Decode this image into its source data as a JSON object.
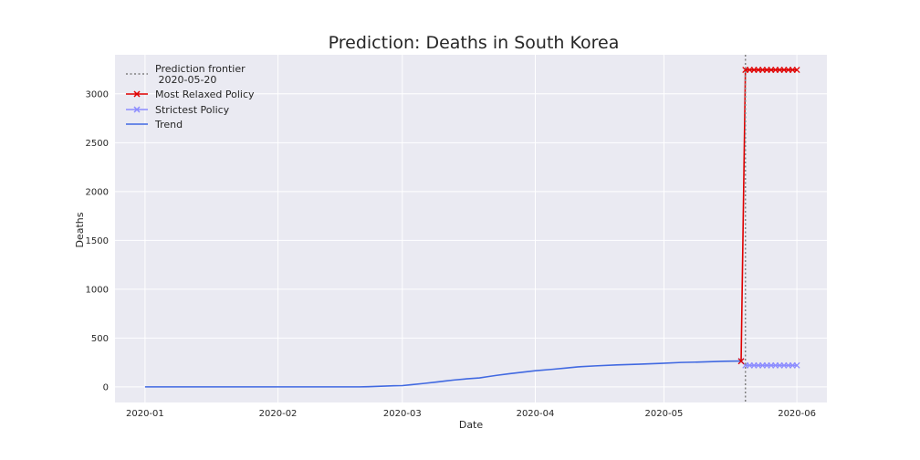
{
  "chart_data": {
    "type": "line",
    "title": "Prediction: Deaths in South Korea",
    "xlabel": "Date",
    "ylabel": "Deaths",
    "x_ticks": [
      "2020-01",
      "2020-02",
      "2020-03",
      "2020-04",
      "2020-05",
      "2020-06"
    ],
    "x_tick_days": [
      0,
      31,
      60,
      91,
      121,
      152
    ],
    "xlim_days": [
      -7,
      159
    ],
    "ylim": [
      -160,
      3400
    ],
    "y_ticks": [
      0,
      500,
      1000,
      1500,
      2000,
      2500,
      3000
    ],
    "y_tick_labels": [
      "0",
      "500",
      "1000",
      "1500",
      "2000",
      "2500",
      "3000"
    ],
    "grid": true,
    "legend_position": "top-left",
    "frontier": {
      "label_line1": "Prediction frontier",
      "label_line2": " 2020-05-20",
      "day": 140,
      "color": "#808080"
    },
    "series": [
      {
        "name": "Trend",
        "color": "#4169e1",
        "marker": "none",
        "days": [
          0,
          10,
          20,
          30,
          40,
          50,
          52,
          55,
          58,
          60,
          62,
          65,
          68,
          70,
          72,
          75,
          78,
          80,
          82,
          85,
          88,
          91,
          95,
          98,
          101,
          105,
          110,
          115,
          120,
          125,
          130,
          135,
          139
        ],
        "values": [
          0,
          0,
          0,
          0,
          0,
          0,
          2,
          6,
          11,
          13,
          22,
          35,
          50,
          60,
          70,
          82,
          92,
          105,
          118,
          135,
          150,
          165,
          180,
          192,
          205,
          215,
          225,
          232,
          240,
          250,
          255,
          262,
          265
        ]
      },
      {
        "name": "Most Relaxed Policy",
        "color": "#e00000",
        "marker": "x",
        "days": [
          139,
          140,
          141,
          142,
          143,
          144,
          145,
          146,
          147,
          148,
          149,
          150,
          151,
          152
        ],
        "values": [
          262,
          3245,
          3245,
          3245,
          3245,
          3245,
          3245,
          3245,
          3245,
          3245,
          3245,
          3245,
          3245,
          3245
        ]
      },
      {
        "name": "Strictest Policy",
        "color": "#8c8cff",
        "marker": "x",
        "days": [
          139,
          140,
          141,
          142,
          143,
          144,
          145,
          146,
          147,
          148,
          149,
          150,
          151,
          152
        ],
        "values": [
          265,
          220,
          220,
          220,
          220,
          220,
          220,
          220,
          220,
          220,
          220,
          220,
          220,
          220
        ]
      }
    ],
    "legend_order": [
      "frontier",
      "Most Relaxed Policy",
      "Strictest Policy",
      "Trend"
    ]
  }
}
